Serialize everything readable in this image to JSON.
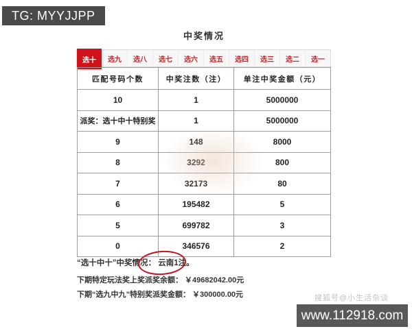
{
  "badge": {
    "text": "TG: MYYJJPP"
  },
  "title": "中奖情况",
  "tabs": [
    {
      "label": "选十",
      "active": true
    },
    {
      "label": "选九",
      "active": false
    },
    {
      "label": "选八",
      "active": false
    },
    {
      "label": "选七",
      "active": false
    },
    {
      "label": "选六",
      "active": false
    },
    {
      "label": "选五",
      "active": false
    },
    {
      "label": "选四",
      "active": false
    },
    {
      "label": "选三",
      "active": false
    },
    {
      "label": "选二",
      "active": false
    },
    {
      "label": "选一",
      "active": false
    }
  ],
  "table": {
    "headers": [
      "匹配号码个数",
      "中奖注数（注）",
      "单注中奖金额（元）"
    ],
    "rows": [
      [
        "10",
        "1",
        "5000000"
      ],
      [
        "派奖：选十中十特别奖",
        "1",
        "5000000"
      ],
      [
        "9",
        "148",
        "8000"
      ],
      [
        "8",
        "3292",
        "800"
      ],
      [
        "7",
        "32173",
        "80"
      ],
      [
        "6",
        "195482",
        "5"
      ],
      [
        "5",
        "699782",
        "3"
      ],
      [
        "0",
        "346576",
        "2"
      ]
    ]
  },
  "notes": {
    "line1_prefix": "“选十中十”中奖情况：",
    "line1_highlight": "云南1注。",
    "line2": "下期特定玩法奖上奖派奖余额： ￥49682042.00元",
    "line3": "下期“选九中九”特别奖派奖金额： ￥300000.00元"
  },
  "watermarks": {
    "sohu": "搜狐号@小生活杂谈",
    "site": "www.112918.com"
  },
  "colors": {
    "accent_red": "#d0121b",
    "circle_red": "#c41320",
    "badge_bg": "#4a4a4a",
    "site_bar_bg": "#595959"
  }
}
